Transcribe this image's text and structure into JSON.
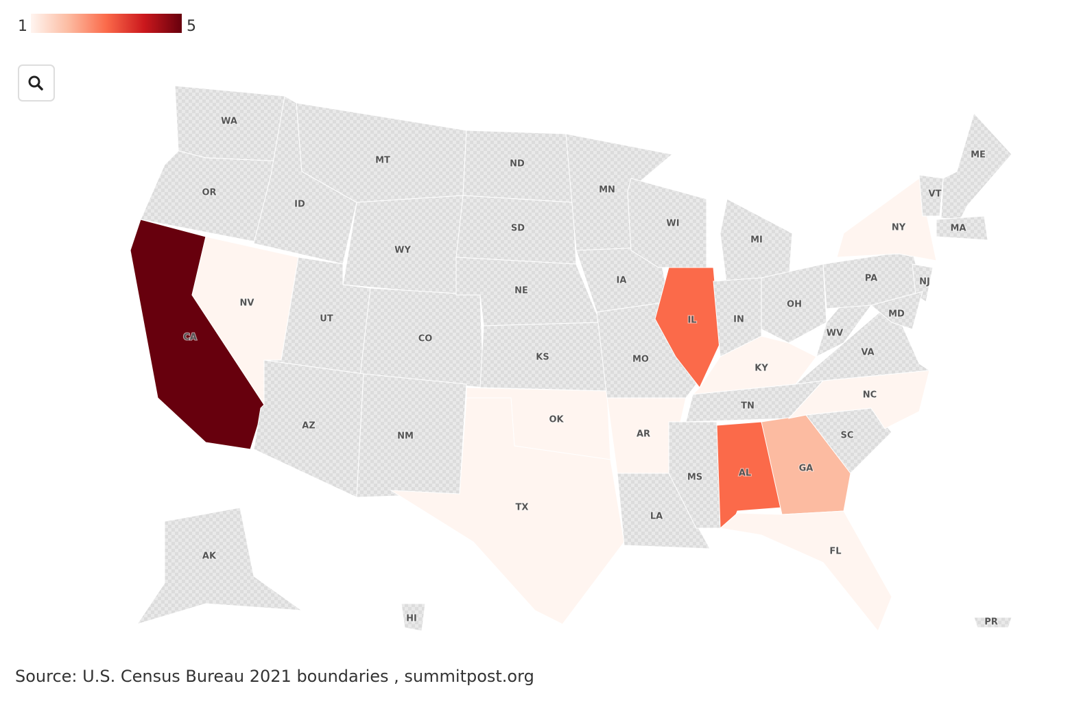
{
  "chart_data": {
    "type": "choropleth",
    "regions": [
      "WA",
      "OR",
      "CA",
      "NV",
      "ID",
      "MT",
      "WY",
      "UT",
      "CO",
      "AZ",
      "NM",
      "ND",
      "SD",
      "NE",
      "KS",
      "OK",
      "TX",
      "MN",
      "IA",
      "MO",
      "AR",
      "LA",
      "WI",
      "IL",
      "MI",
      "IN",
      "OH",
      "KY",
      "TN",
      "MS",
      "AL",
      "GA",
      "FL",
      "SC",
      "NC",
      "VA",
      "WV",
      "PA",
      "NY",
      "NJ",
      "MD",
      "VT",
      "ME",
      "MA",
      "AK",
      "HI",
      "PR"
    ],
    "values": [
      null,
      null,
      5,
      1,
      null,
      null,
      null,
      null,
      null,
      null,
      null,
      null,
      null,
      null,
      null,
      1,
      1,
      null,
      null,
      null,
      1,
      null,
      null,
      3,
      null,
      null,
      null,
      1,
      null,
      null,
      3,
      2,
      1,
      null,
      1,
      null,
      null,
      null,
      1,
      null,
      null,
      null,
      null,
      null,
      null,
      null,
      null
    ],
    "colorlim": [
      1,
      5
    ],
    "colorscale": [
      "#fff5f0",
      "#fcbba1",
      "#fb6a4a",
      "#cb181d",
      "#67000d"
    ],
    "source": "Source: U.S. Census Bureau 2021 boundaries , summitpost.org"
  }
}
